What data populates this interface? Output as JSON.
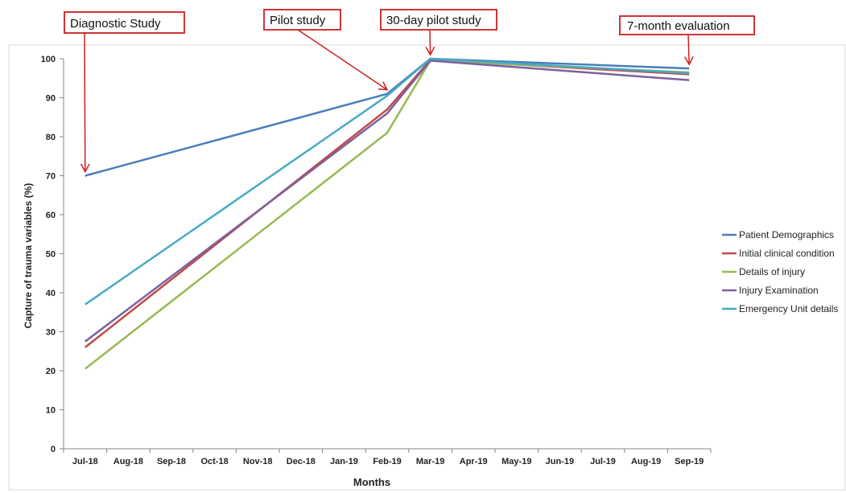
{
  "chart_data": {
    "type": "line",
    "title": "",
    "xlabel": "Months",
    "ylabel": "Capture of trauma variables (%)",
    "ylim": [
      0,
      100
    ],
    "yticks": [
      0,
      10,
      20,
      30,
      40,
      50,
      60,
      70,
      80,
      90,
      100
    ],
    "grid": false,
    "legend_position": "right",
    "categories": [
      "Jul-18",
      "Aug-18",
      "Sep-18",
      "Oct-18",
      "Nov-18",
      "Dec-18",
      "Jan-19",
      "Feb-19",
      "Mar-19",
      "Apr-19",
      "May-19",
      "Jun-19",
      "Jul-19",
      "Aug-19",
      "Sep-19"
    ],
    "series": [
      {
        "name": "Patient Demographics",
        "color": "#4a7ebb",
        "points": [
          {
            "x": "Jul-18",
            "y": 70
          },
          {
            "x": "Feb-19",
            "y": 91
          },
          {
            "x": "Mar-19",
            "y": 100
          },
          {
            "x": "Sep-19",
            "y": 97.5
          }
        ]
      },
      {
        "name": "Initial clinical condition",
        "color": "#be4b48",
        "points": [
          {
            "x": "Jul-18",
            "y": 26
          },
          {
            "x": "Feb-19",
            "y": 87
          },
          {
            "x": "Mar-19",
            "y": 99.7
          },
          {
            "x": "Sep-19",
            "y": 96
          }
        ]
      },
      {
        "name": "Details of injury",
        "color": "#98b954",
        "points": [
          {
            "x": "Jul-18",
            "y": 20.5
          },
          {
            "x": "Feb-19",
            "y": 81
          },
          {
            "x": "Mar-19",
            "y": 99.5
          },
          {
            "x": "Sep-19",
            "y": 96.5
          }
        ]
      },
      {
        "name": "Injury Examination",
        "color": "#7d60a0",
        "points": [
          {
            "x": "Jul-18",
            "y": 27.5
          },
          {
            "x": "Feb-19",
            "y": 86
          },
          {
            "x": "Mar-19",
            "y": 99.5
          },
          {
            "x": "Sep-19",
            "y": 94.5
          }
        ]
      },
      {
        "name": "Emergency Unit details",
        "color": "#46aac5",
        "points": [
          {
            "x": "Jul-18",
            "y": 37
          },
          {
            "x": "Feb-19",
            "y": 90.5
          },
          {
            "x": "Mar-19",
            "y": 100
          },
          {
            "x": "Sep-19",
            "y": 96.3
          }
        ]
      }
    ],
    "annotations": [
      {
        "text": "Diagnostic Study",
        "target": {
          "x": "Jul-18",
          "y": 70
        }
      },
      {
        "text": "Pilot study",
        "target": {
          "x": "Feb-19",
          "y": 91
        }
      },
      {
        "text": "30-day pilot study",
        "target": {
          "x": "Mar-19",
          "y": 100
        }
      },
      {
        "text": "7-month evaluation",
        "target": {
          "x": "Sep-19",
          "y": 97.5
        }
      }
    ],
    "annotation_color": "#cc1f1f"
  }
}
